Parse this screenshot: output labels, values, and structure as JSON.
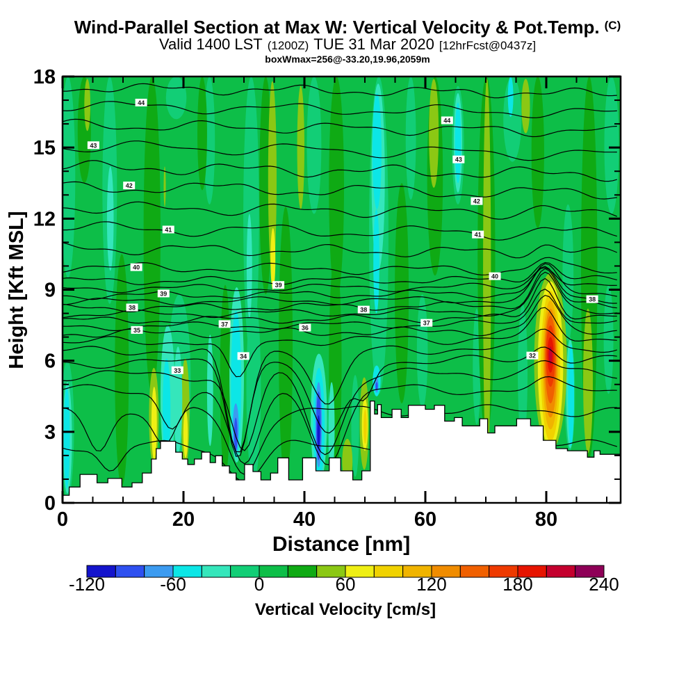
{
  "header": {
    "title": "Wind-Parallel Section at Max W: Vertical Velocity & Pot.Temp.",
    "title_suffix": "(C)",
    "sub_valid": "Valid 1400 LST",
    "sub_z": "(1200Z)",
    "sub_date": "TUE 31 Mar 2020",
    "sub_fcst": "[12hrFcst@0437z]",
    "info_line": "boxWmax=256@-33.20,19.96,2059m"
  },
  "colorbar": {
    "tick_labels": [
      "-120",
      "-60",
      "0",
      "60",
      "120",
      "180",
      "240"
    ],
    "label": "Vertical Velocity [cm/s]"
  },
  "chart_data": {
    "type": "heatmap",
    "title": "Wind-Parallel Section at Max W: Vertical Velocity & Pot.Temp. (C)",
    "xlabel": "Distance [nm]",
    "ylabel": "Height [Kft MSL]",
    "xlim": [
      0,
      92.3
    ],
    "ylim": [
      0,
      18
    ],
    "x_major_ticks": [
      0,
      20,
      40,
      60,
      80
    ],
    "x_minor_step": 5,
    "y_major_ticks": [
      0,
      3,
      6,
      9,
      12,
      15,
      18
    ],
    "y_minor_step": 1,
    "fill_variable": "Vertical Velocity [cm/s]",
    "fill_levels": [
      -120,
      -100,
      -80,
      -60,
      -40,
      -20,
      0,
      20,
      40,
      60,
      80,
      100,
      120,
      140,
      160,
      180,
      200,
      220,
      240
    ],
    "fill_colors": [
      "#1414cc",
      "#2e50f0",
      "#3c9bf0",
      "#0ce6e6",
      "#35e6bb",
      "#12ce76",
      "#0dbe48",
      "#0faa14",
      "#8bc814",
      "#efef14",
      "#f0d200",
      "#f0b400",
      "#f08c00",
      "#f06000",
      "#ee3a00",
      "#e61400",
      "#c4002e",
      "#8e0057"
    ],
    "contour_variable": "Pot.Temp. (C)",
    "max_updraft": {
      "value_cm_s": 256,
      "lat": -33.2,
      "lon": 19.96,
      "height_m": 2059,
      "distance_nm": 80
    },
    "field_bands": [
      [
        0.9,
        2.4,
        18,
        9.5,
        -10
      ],
      [
        0.8,
        2.2,
        6.0,
        0.2,
        -10
      ],
      [
        7.8,
        2.4,
        18,
        8.4,
        -10
      ],
      [
        18.8,
        3.4,
        18,
        16.2,
        -10
      ],
      [
        19.3,
        3.8,
        8.8,
        1.4,
        -10
      ],
      [
        24.3,
        1.8,
        18,
        12.6,
        -10
      ],
      [
        31.2,
        2.6,
        18,
        6.2,
        -10
      ],
      [
        31.6,
        2.4,
        8.8,
        0.9,
        -10
      ],
      [
        41.6,
        2.4,
        18,
        12.2,
        -10
      ],
      [
        44.7,
        1.8,
        5.6,
        0.9,
        -10
      ],
      [
        48.4,
        1.3,
        5.4,
        1.1,
        -10
      ],
      [
        52.3,
        3.2,
        18,
        4.6,
        -10
      ],
      [
        57.6,
        1.7,
        18,
        12.8,
        -10
      ],
      [
        59.5,
        1.8,
        8.8,
        4.0,
        -10
      ],
      [
        65.4,
        2.0,
        17.6,
        12.6,
        -10
      ],
      [
        68.5,
        1.3,
        8.2,
        3.3,
        -10
      ],
      [
        74.4,
        3.0,
        18,
        14.4,
        -10
      ],
      [
        76.1,
        1.6,
        8.4,
        2.5,
        -10
      ],
      [
        83.6,
        1.8,
        12.6,
        6.8,
        -10
      ],
      [
        83.9,
        1.7,
        7.0,
        2.2,
        -10
      ],
      [
        90.8,
        2.4,
        18,
        12.2,
        -10
      ],
      [
        90.3,
        1.6,
        9.2,
        4.6,
        -10
      ],
      [
        3.6,
        2.2,
        18,
        13.5,
        30
      ],
      [
        14.8,
        2.8,
        18,
        4.6,
        30
      ],
      [
        23.1,
        1.6,
        18,
        13.2,
        30
      ],
      [
        26.9,
        1.7,
        9.2,
        1.2,
        30
      ],
      [
        33.6,
        2.1,
        18,
        8.8,
        30
      ],
      [
        36.9,
        2.3,
        12.5,
        0.9,
        30
      ],
      [
        45.3,
        2.5,
        18,
        8.6,
        30
      ],
      [
        45.1,
        2.1,
        10.5,
        1.2,
        30
      ],
      [
        56.1,
        2.3,
        13.5,
        4.2,
        30
      ],
      [
        61.6,
        2.6,
        18,
        9.6,
        30
      ],
      [
        70.1,
        2.9,
        18,
        2.8,
        30
      ],
      [
        78.6,
        2.1,
        18,
        11.6,
        30
      ],
      [
        87.1,
        2.7,
        18,
        1.9,
        30
      ],
      [
        9.8,
        2.3,
        10.5,
        0.7,
        30
      ],
      [
        4.1,
        1.0,
        17.9,
        15.7,
        50
      ],
      [
        16.9,
        0.35,
        14.2,
        12.5,
        50
      ],
      [
        34.7,
        1.4,
        17.8,
        9.6,
        50
      ],
      [
        39.4,
        1.2,
        17.6,
        12.4,
        50
      ],
      [
        61.4,
        1.6,
        17.9,
        13.3,
        50
      ],
      [
        70.2,
        1.3,
        17.9,
        1.4,
        50
      ],
      [
        76.6,
        1.4,
        17.9,
        15.6,
        50
      ],
      [
        86.9,
        1.6,
        8.2,
        2.1,
        50
      ],
      [
        15.1,
        1.6,
        5.7,
        1.6,
        50
      ],
      [
        20.3,
        1.4,
        6.1,
        1.5,
        50
      ],
      [
        49.9,
        1.5,
        5.3,
        1.4,
        50
      ],
      [
        47.1,
        1.7,
        2.7,
        0.8,
        50
      ],
      [
        34.8,
        0.8,
        11.6,
        9.0,
        70
      ],
      [
        7.9,
        1.1,
        14.2,
        9.8,
        -30
      ],
      [
        17.4,
        2.4,
        7.5,
        1.5,
        -30
      ],
      [
        19.1,
        1.4,
        6.6,
        2.1,
        -30
      ],
      [
        24.4,
        1.0,
        7.1,
        2.4,
        -30
      ],
      [
        30.9,
        0.9,
        12.2,
        7.8,
        -30
      ],
      [
        52.2,
        2.2,
        17.7,
        9.8,
        -30
      ],
      [
        65.4,
        1.4,
        17.3,
        13.1,
        -30
      ],
      [
        83.95,
        1.3,
        6.9,
        2.3,
        -30
      ],
      [
        28.8,
        2.4,
        9.1,
        1.7,
        -30
      ],
      [
        42.4,
        2.7,
        6.3,
        0.8,
        -30
      ],
      [
        44.5,
        1.0,
        5.1,
        1.2,
        -30
      ],
      [
        0.8,
        1.5,
        5.1,
        0.4,
        -30
      ],
      [
        0.7,
        1.0,
        4.9,
        0.6,
        -50
      ],
      [
        17.2,
        1.3,
        6.1,
        1.7,
        -50
      ],
      [
        52.0,
        1.5,
        17.3,
        12.4,
        -50
      ],
      [
        51.9,
        1.0,
        12.4,
        8.0,
        -50
      ],
      [
        65.4,
        1.0,
        16.9,
        13.5,
        -50
      ],
      [
        74.1,
        0.9,
        18,
        16.3,
        -50
      ],
      [
        84.1,
        1.0,
        6.7,
        2.4,
        -50
      ],
      [
        28.7,
        1.7,
        8.1,
        1.9,
        -50
      ],
      [
        42.4,
        1.9,
        5.7,
        0.9,
        -50
      ],
      [
        51.95,
        1.3,
        5.8,
        4.5,
        -50
      ],
      [
        28.65,
        1.0,
        4.2,
        2.1,
        -70
      ],
      [
        28.65,
        0.55,
        3.6,
        2.2,
        -90
      ],
      [
        42.35,
        1.1,
        5.1,
        1.5,
        -70
      ],
      [
        42.35,
        0.75,
        4.7,
        1.8,
        -90
      ],
      [
        42.35,
        0.45,
        3.7,
        2.3,
        -110
      ],
      [
        51.95,
        0.6,
        5.3,
        4.65,
        -75
      ],
      [
        51.95,
        0.35,
        5.1,
        4.75,
        -90
      ],
      [
        15.15,
        0.9,
        4.9,
        1.8,
        70
      ],
      [
        20.35,
        0.75,
        3.9,
        1.9,
        70
      ],
      [
        50.0,
        1.0,
        4.4,
        2.2,
        70
      ],
      [
        50.05,
        0.55,
        3.95,
        2.5,
        90
      ],
      [
        80.7,
        5.4,
        9.7,
        2.2,
        50
      ],
      [
        80.7,
        4.2,
        9.35,
        2.35,
        70
      ],
      [
        80.7,
        3.2,
        8.95,
        2.6,
        90
      ],
      [
        80.7,
        2.6,
        8.55,
        3.1,
        110
      ],
      [
        80.7,
        2.15,
        8.2,
        3.6,
        130
      ],
      [
        80.7,
        1.8,
        7.9,
        4.2,
        150
      ],
      [
        80.7,
        1.5,
        7.5,
        4.9,
        170
      ],
      [
        80.7,
        1.05,
        7.0,
        5.5,
        190
      ],
      [
        80.7,
        0.6,
        6.6,
        5.85,
        210
      ]
    ],
    "terrain_profile": [
      [
        0,
        0.32
      ],
      [
        1.1,
        0.67
      ],
      [
        2.9,
        1.2
      ],
      [
        5.7,
        0.85
      ],
      [
        7.5,
        1.03
      ],
      [
        9.8,
        0.67
      ],
      [
        11.5,
        0.85
      ],
      [
        13.2,
        1.26
      ],
      [
        14.7,
        1.85
      ],
      [
        15.5,
        2.29
      ],
      [
        16.2,
        2.6
      ],
      [
        18.7,
        2.14
      ],
      [
        19.8,
        1.85
      ],
      [
        20.7,
        1.62
      ],
      [
        21.8,
        1.85
      ],
      [
        23.0,
        2.14
      ],
      [
        24.4,
        1.7
      ],
      [
        25.3,
        1.99
      ],
      [
        26.4,
        1.56
      ],
      [
        27.6,
        1.26
      ],
      [
        28.7,
        0.97
      ],
      [
        30.1,
        1.62
      ],
      [
        31.5,
        1.32
      ],
      [
        32.8,
        0.97
      ],
      [
        34.4,
        1.26
      ],
      [
        35.6,
        1.9
      ],
      [
        37.4,
        0.97
      ],
      [
        39.7,
        1.9
      ],
      [
        41.9,
        1.35
      ],
      [
        44.1,
        1.9
      ],
      [
        46.0,
        1.35
      ],
      [
        48.0,
        0.97
      ],
      [
        49.5,
        1.35
      ],
      [
        50.9,
        4.3
      ],
      [
        51.6,
        3.75
      ],
      [
        52.1,
        4.15
      ],
      [
        52.7,
        3.6
      ],
      [
        54.5,
        3.95
      ],
      [
        56.0,
        3.6
      ],
      [
        57.2,
        4.12
      ],
      [
        60.0,
        3.95
      ],
      [
        61.5,
        4.12
      ],
      [
        63.2,
        3.45
      ],
      [
        64.8,
        3.6
      ],
      [
        66.1,
        3.25
      ],
      [
        69.0,
        3.55
      ],
      [
        70.3,
        2.95
      ],
      [
        71.5,
        3.25
      ],
      [
        73.0,
        3.25
      ],
      [
        75.1,
        3.55
      ],
      [
        77.4,
        3.25
      ],
      [
        79.5,
        2.64
      ],
      [
        81.6,
        2.29
      ],
      [
        83.5,
        2.2
      ],
      [
        86.8,
        1.93
      ],
      [
        87.9,
        2.2
      ],
      [
        88.9,
        2.05
      ],
      [
        92.3,
        2.05
      ]
    ],
    "contour_lines": [
      [
        126,
        0.1,
        5,
        23,
        0.5,
        3,
        9,
        2.0,
        0,
        []
      ],
      [
        152,
        0.12,
        6,
        26,
        2.1,
        3,
        11,
        0.7,
        0,
        []
      ],
      [
        180,
        0.1,
        6,
        22,
        4.2,
        3,
        10,
        3.1,
        0,
        []
      ],
      [
        210,
        0.14,
        7,
        25,
        1.2,
        3,
        12,
        5.0,
        0,
        []
      ],
      [
        240,
        0.12,
        6,
        24,
        3.3,
        4,
        10,
        1.5,
        0,
        []
      ],
      [
        268,
        0.12,
        7,
        27,
        5.1,
        3,
        9,
        2.6,
        0,
        []
      ],
      [
        298,
        0.1,
        6,
        23,
        0.8,
        4,
        11,
        4.2,
        5,
        []
      ],
      [
        328,
        0.1,
        7,
        26,
        2.9,
        3,
        10,
        0.3,
        8,
        []
      ],
      [
        357,
        0.08,
        6,
        22,
        4.8,
        3,
        9,
        5.5,
        12,
        []
      ],
      [
        384,
        0.06,
        5,
        24,
        1.7,
        3,
        10,
        2.2,
        18,
        []
      ],
      [
        404,
        -0.02,
        4,
        21,
        3.6,
        2,
        8,
        4.4,
        26,
        []
      ],
      [
        415,
        -0.03,
        4,
        23,
        5.3,
        2,
        9,
        1.1,
        32,
        []
      ],
      [
        425,
        -0.04,
        4,
        22,
        0.4,
        2,
        8,
        3.8,
        38,
        []
      ],
      [
        434,
        -0.04,
        4,
        24,
        2.5,
        2,
        9,
        0.9,
        44,
        []
      ],
      [
        443,
        -0.05,
        4,
        21,
        4.6,
        2,
        8,
        5.2,
        50,
        []
      ],
      [
        452,
        -0.05,
        4,
        23,
        1.3,
        2,
        9,
        2.7,
        55,
        []
      ],
      [
        461,
        -0.05,
        4,
        22,
        3.4,
        2,
        8,
        4.9,
        58,
        []
      ],
      [
        470,
        -0.06,
        4,
        24,
        5.5,
        2,
        9,
        1.8,
        55,
        []
      ],
      [
        480,
        -0.06,
        4,
        22,
        0.9,
        3,
        9,
        3.5,
        48,
        []
      ],
      [
        492,
        -0.07,
        5,
        23,
        2.8,
        3,
        10,
        5.8,
        40,
        [
          [
            29,
            2.5,
            60
          ]
        ]
      ],
      [
        505,
        -0.05,
        5,
        24,
        4.1,
        3,
        10,
        1.4,
        30,
        [
          [
            29,
            2.8,
            150
          ],
          [
            44,
            3.5,
            80
          ]
        ]
      ],
      [
        522,
        -0.05,
        5,
        25,
        0.2,
        3,
        11,
        4.0,
        22,
        [
          [
            29,
            2.5,
            130
          ],
          [
            44,
            4,
            110
          ],
          [
            50,
            2,
            40
          ]
        ]
      ],
      [
        540,
        -0.04,
        6,
        24,
        2.0,
        3,
        10,
        0.6,
        15,
        [
          [
            30,
            3,
            110
          ],
          [
            43.5,
            4,
            110
          ]
        ]
      ],
      [
        562,
        -0.03,
        6,
        26,
        3.9,
        3,
        11,
        2.3,
        10,
        [
          [
            18,
            2.5,
            50
          ],
          [
            30,
            3.5,
            110
          ],
          [
            44,
            4,
            100
          ]
        ]
      ],
      [
        592,
        -0.02,
        6,
        25,
        5.7,
        3,
        10,
        4.7,
        0,
        [
          [
            6,
            2.5,
            50
          ],
          [
            17,
            2.5,
            50
          ],
          [
            30,
            3.5,
            90
          ]
        ]
      ],
      [
        640,
        0.0,
        5,
        24,
        1.0,
        3,
        10,
        0.0,
        0,
        [
          [
            8,
            2.5,
            40
          ],
          [
            30,
            4,
            50
          ]
        ]
      ]
    ],
    "contour_labels": [
      {
        "v": "44",
        "nm": 13.0,
        "kft": 16.9
      },
      {
        "v": "44",
        "nm": 63.6,
        "kft": 16.15
      },
      {
        "v": "43",
        "nm": 5.1,
        "kft": 15.1
      },
      {
        "v": "43",
        "nm": 65.5,
        "kft": 14.5
      },
      {
        "v": "42",
        "nm": 11.0,
        "kft": 13.4
      },
      {
        "v": "42",
        "nm": 68.5,
        "kft": 12.74
      },
      {
        "v": "41",
        "nm": 17.5,
        "kft": 11.54
      },
      {
        "v": "41",
        "nm": 68.7,
        "kft": 11.33
      },
      {
        "v": "40",
        "nm": 12.2,
        "kft": 9.95
      },
      {
        "v": "40",
        "nm": 71.5,
        "kft": 9.57
      },
      {
        "v": "39",
        "nm": 35.7,
        "kft": 9.2
      },
      {
        "v": "39",
        "nm": 16.7,
        "kft": 8.84
      },
      {
        "v": "38",
        "nm": 11.5,
        "kft": 8.25
      },
      {
        "v": "38",
        "nm": 49.8,
        "kft": 8.16
      },
      {
        "v": "38",
        "nm": 87.6,
        "kft": 8.6
      },
      {
        "v": "37",
        "nm": 26.8,
        "kft": 7.55
      },
      {
        "v": "37",
        "nm": 60.2,
        "kft": 7.6
      },
      {
        "v": "36",
        "nm": 40.1,
        "kft": 7.4
      },
      {
        "v": "35",
        "nm": 12.3,
        "kft": 7.3
      },
      {
        "v": "34",
        "nm": 29.9,
        "kft": 6.2
      },
      {
        "v": "33",
        "nm": 19.0,
        "kft": 5.6
      },
      {
        "v": "32",
        "nm": 77.7,
        "kft": 6.22
      }
    ]
  }
}
